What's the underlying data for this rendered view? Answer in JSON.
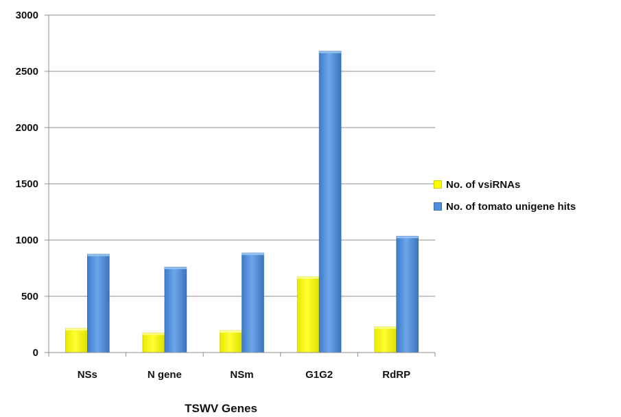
{
  "chart_data": {
    "type": "bar",
    "categories": [
      "NSs",
      "N gene",
      "NSm",
      "G1G2",
      "RdRP"
    ],
    "series": [
      {
        "name": "No. of vsiRNAs",
        "color": "#ffff00",
        "values": [
          215,
          175,
          195,
          675,
          230
        ]
      },
      {
        "name": "No. of tomato unigene hits",
        "color": "#4f8fdc",
        "values": [
          875,
          760,
          885,
          2680,
          1035
        ]
      }
    ],
    "xlabel": "TSWV Genes",
    "ylabel": "",
    "ylim": [
      0,
      3000
    ],
    "yticks": [
      0,
      500,
      1000,
      1500,
      2000,
      2500,
      3000
    ],
    "grid": true,
    "legend_position": "right"
  }
}
